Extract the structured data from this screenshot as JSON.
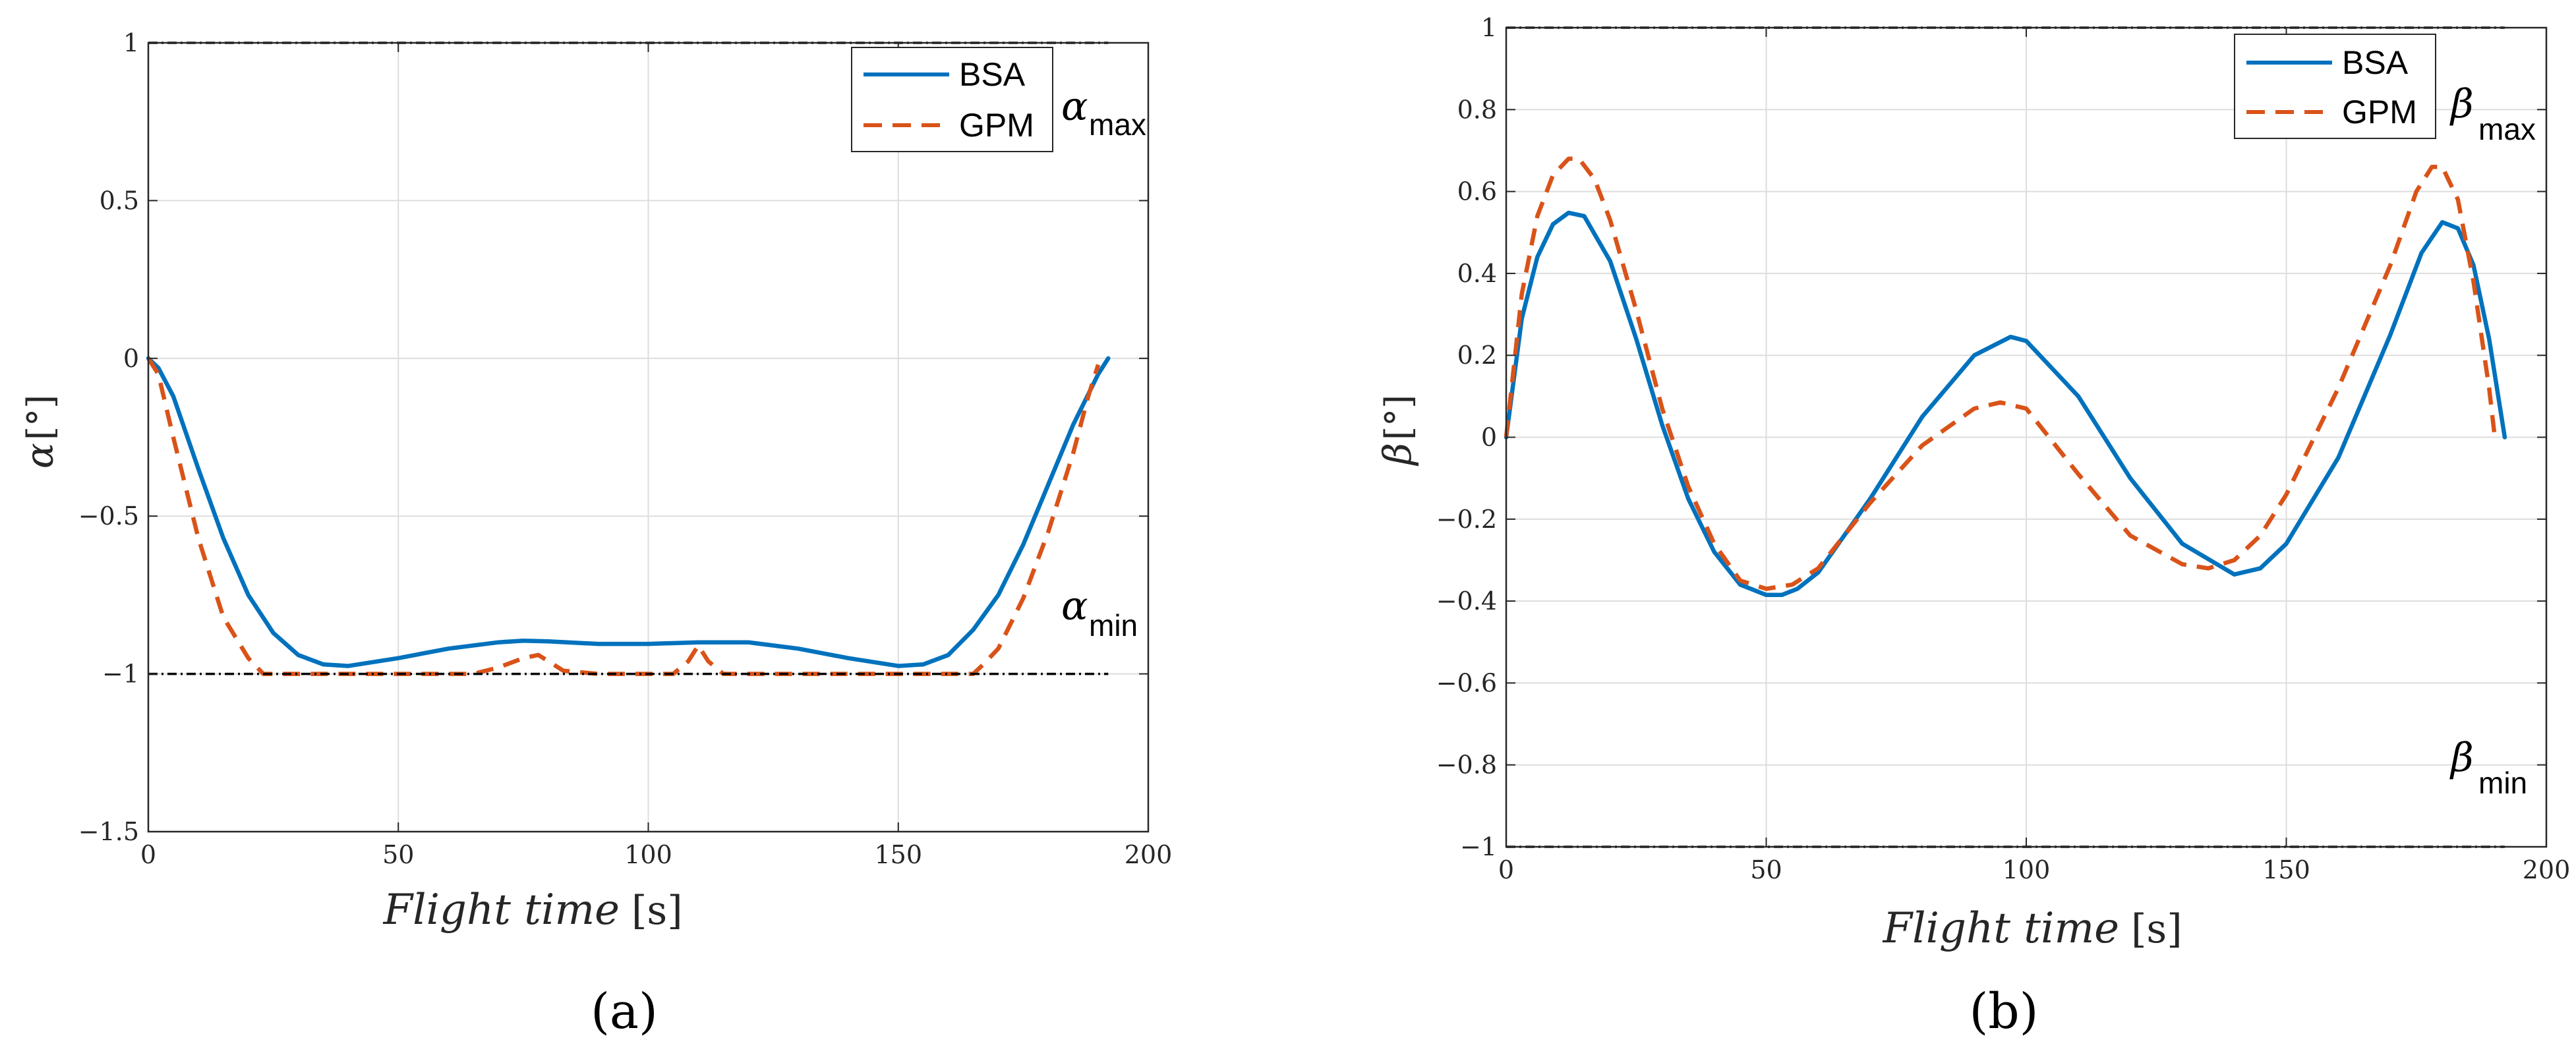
{
  "chart_data": [
    {
      "type": "line",
      "panel_label": "(a)",
      "xlabel": "Flight time",
      "xunit": "[s]",
      "ylabel_symbol": "α",
      "ylabel_unit": "[°]",
      "xlim": [
        0,
        200
      ],
      "ylim": [
        -1.5,
        1
      ],
      "xticks": [
        0,
        50,
        100,
        150,
        200
      ],
      "yticks": [
        -1.5,
        -1,
        -0.5,
        0,
        0.5,
        1
      ],
      "xtick_labels": [
        "0",
        "50",
        "100",
        "150",
        "200"
      ],
      "ytick_labels": [
        "−1.5",
        "−1",
        "−0.5",
        "0",
        "0.5",
        "1"
      ],
      "grid": true,
      "legend": "top-right",
      "x_end": 192,
      "series": [
        {
          "name": "BSA",
          "style": "solid",
          "color": "#0072BD",
          "x": [
            0,
            2,
            5,
            10,
            15,
            20,
            25,
            30,
            35,
            40,
            50,
            60,
            70,
            75,
            80,
            90,
            100,
            110,
            120,
            130,
            140,
            150,
            155,
            160,
            165,
            170,
            175,
            180,
            185,
            190,
            192
          ],
          "y": [
            0,
            -0.03,
            -0.12,
            -0.35,
            -0.57,
            -0.75,
            -0.87,
            -0.94,
            -0.97,
            -0.975,
            -0.95,
            -0.92,
            -0.9,
            -0.895,
            -0.897,
            -0.905,
            -0.905,
            -0.9,
            -0.9,
            -0.92,
            -0.95,
            -0.975,
            -0.97,
            -0.94,
            -0.86,
            -0.75,
            -0.59,
            -0.4,
            -0.21,
            -0.05,
            0
          ]
        },
        {
          "name": "GPM",
          "style": "dashed",
          "color": "#D95319",
          "x": [
            0,
            2,
            5,
            10,
            15,
            20,
            23,
            27,
            40,
            55,
            65,
            70,
            75,
            78,
            80,
            83,
            90,
            100,
            105,
            108,
            110,
            112,
            115,
            125,
            140,
            155,
            165,
            167,
            170,
            175,
            180,
            185,
            188,
            190
          ],
          "y": [
            0,
            -0.05,
            -0.25,
            -0.57,
            -0.82,
            -0.95,
            -1.0,
            -1.0,
            -1.0,
            -1.0,
            -1.0,
            -0.98,
            -0.95,
            -0.94,
            -0.96,
            -0.99,
            -1.0,
            -1.0,
            -1.0,
            -0.96,
            -0.91,
            -0.96,
            -1.0,
            -1.0,
            -1.0,
            -1.0,
            -1.0,
            -0.97,
            -0.92,
            -0.76,
            -0.55,
            -0.3,
            -0.12,
            -0.02
          ]
        },
        {
          "name": "max_bound",
          "style": "dashdot",
          "color": "#000000",
          "x": [
            0,
            192
          ],
          "y": [
            1,
            1
          ]
        },
        {
          "name": "min_bound",
          "style": "dashdot",
          "color": "#000000",
          "x": [
            0,
            192
          ],
          "y": [
            -1,
            -1
          ]
        }
      ],
      "legend_entries": [
        "BSA",
        "GPM"
      ],
      "annotations": [
        {
          "symbol": "α",
          "sub": "max"
        },
        {
          "symbol": "α",
          "sub": "min"
        }
      ]
    },
    {
      "type": "line",
      "panel_label": "(b)",
      "xlabel": "Flight time",
      "xunit": "[s]",
      "ylabel_symbol": "β",
      "ylabel_unit": "[°]",
      "xlim": [
        0,
        200
      ],
      "ylim": [
        -1,
        1
      ],
      "xticks": [
        0,
        50,
        100,
        150,
        200
      ],
      "yticks": [
        -1,
        -0.8,
        -0.6,
        -0.4,
        -0.2,
        0,
        0.2,
        0.4,
        0.6,
        0.8,
        1
      ],
      "xtick_labels": [
        "0",
        "50",
        "100",
        "150",
        "200"
      ],
      "ytick_labels": [
        "−1",
        "−0.8",
        "−0.6",
        "−0.4",
        "−0.2",
        "0",
        "0.2",
        "0.4",
        "0.6",
        "0.8",
        "1"
      ],
      "grid": true,
      "legend": "top-right",
      "x_end": 192,
      "series": [
        {
          "name": "BSA",
          "style": "solid",
          "color": "#0072BD",
          "x": [
            0,
            3,
            6,
            9,
            12,
            15,
            20,
            25,
            30,
            35,
            40,
            45,
            50,
            53,
            56,
            60,
            70,
            80,
            90,
            97,
            100,
            110,
            120,
            130,
            140,
            145,
            150,
            160,
            170,
            176,
            180,
            183,
            186,
            189,
            192
          ],
          "y": [
            0,
            0.29,
            0.44,
            0.52,
            0.548,
            0.54,
            0.43,
            0.24,
            0.03,
            -0.15,
            -0.28,
            -0.36,
            -0.385,
            -0.385,
            -0.37,
            -0.33,
            -0.15,
            0.05,
            0.2,
            0.245,
            0.235,
            0.1,
            -0.1,
            -0.26,
            -0.335,
            -0.32,
            -0.26,
            -0.05,
            0.25,
            0.45,
            0.525,
            0.51,
            0.42,
            0.24,
            0
          ]
        },
        {
          "name": "GPM",
          "style": "dashed",
          "color": "#D95319",
          "x": [
            0,
            3,
            6,
            9,
            12,
            14,
            17,
            20,
            25,
            30,
            35,
            40,
            45,
            50,
            55,
            60,
            70,
            80,
            90,
            95,
            100,
            110,
            120,
            130,
            135,
            140,
            145,
            150,
            160,
            170,
            175,
            178,
            180,
            183,
            186,
            189,
            190
          ],
          "y": [
            0,
            0.35,
            0.54,
            0.64,
            0.68,
            0.68,
            0.63,
            0.53,
            0.31,
            0.07,
            -0.12,
            -0.26,
            -0.35,
            -0.37,
            -0.36,
            -0.32,
            -0.16,
            -0.02,
            0.07,
            0.085,
            0.07,
            -0.09,
            -0.24,
            -0.31,
            -0.32,
            -0.3,
            -0.24,
            -0.14,
            0.12,
            0.42,
            0.6,
            0.66,
            0.66,
            0.58,
            0.38,
            0.12,
            0.01
          ]
        },
        {
          "name": "max_bound",
          "style": "dashdot",
          "color": "#000000",
          "x": [
            0,
            192
          ],
          "y": [
            1,
            1
          ]
        },
        {
          "name": "min_bound",
          "style": "dashdot",
          "color": "#000000",
          "x": [
            0,
            192
          ],
          "y": [
            -1,
            -1
          ]
        }
      ],
      "legend_entries": [
        "BSA",
        "GPM"
      ],
      "annotations": [
        {
          "symbol": "β",
          "sub": "max"
        },
        {
          "symbol": "β",
          "sub": "min"
        }
      ]
    }
  ]
}
